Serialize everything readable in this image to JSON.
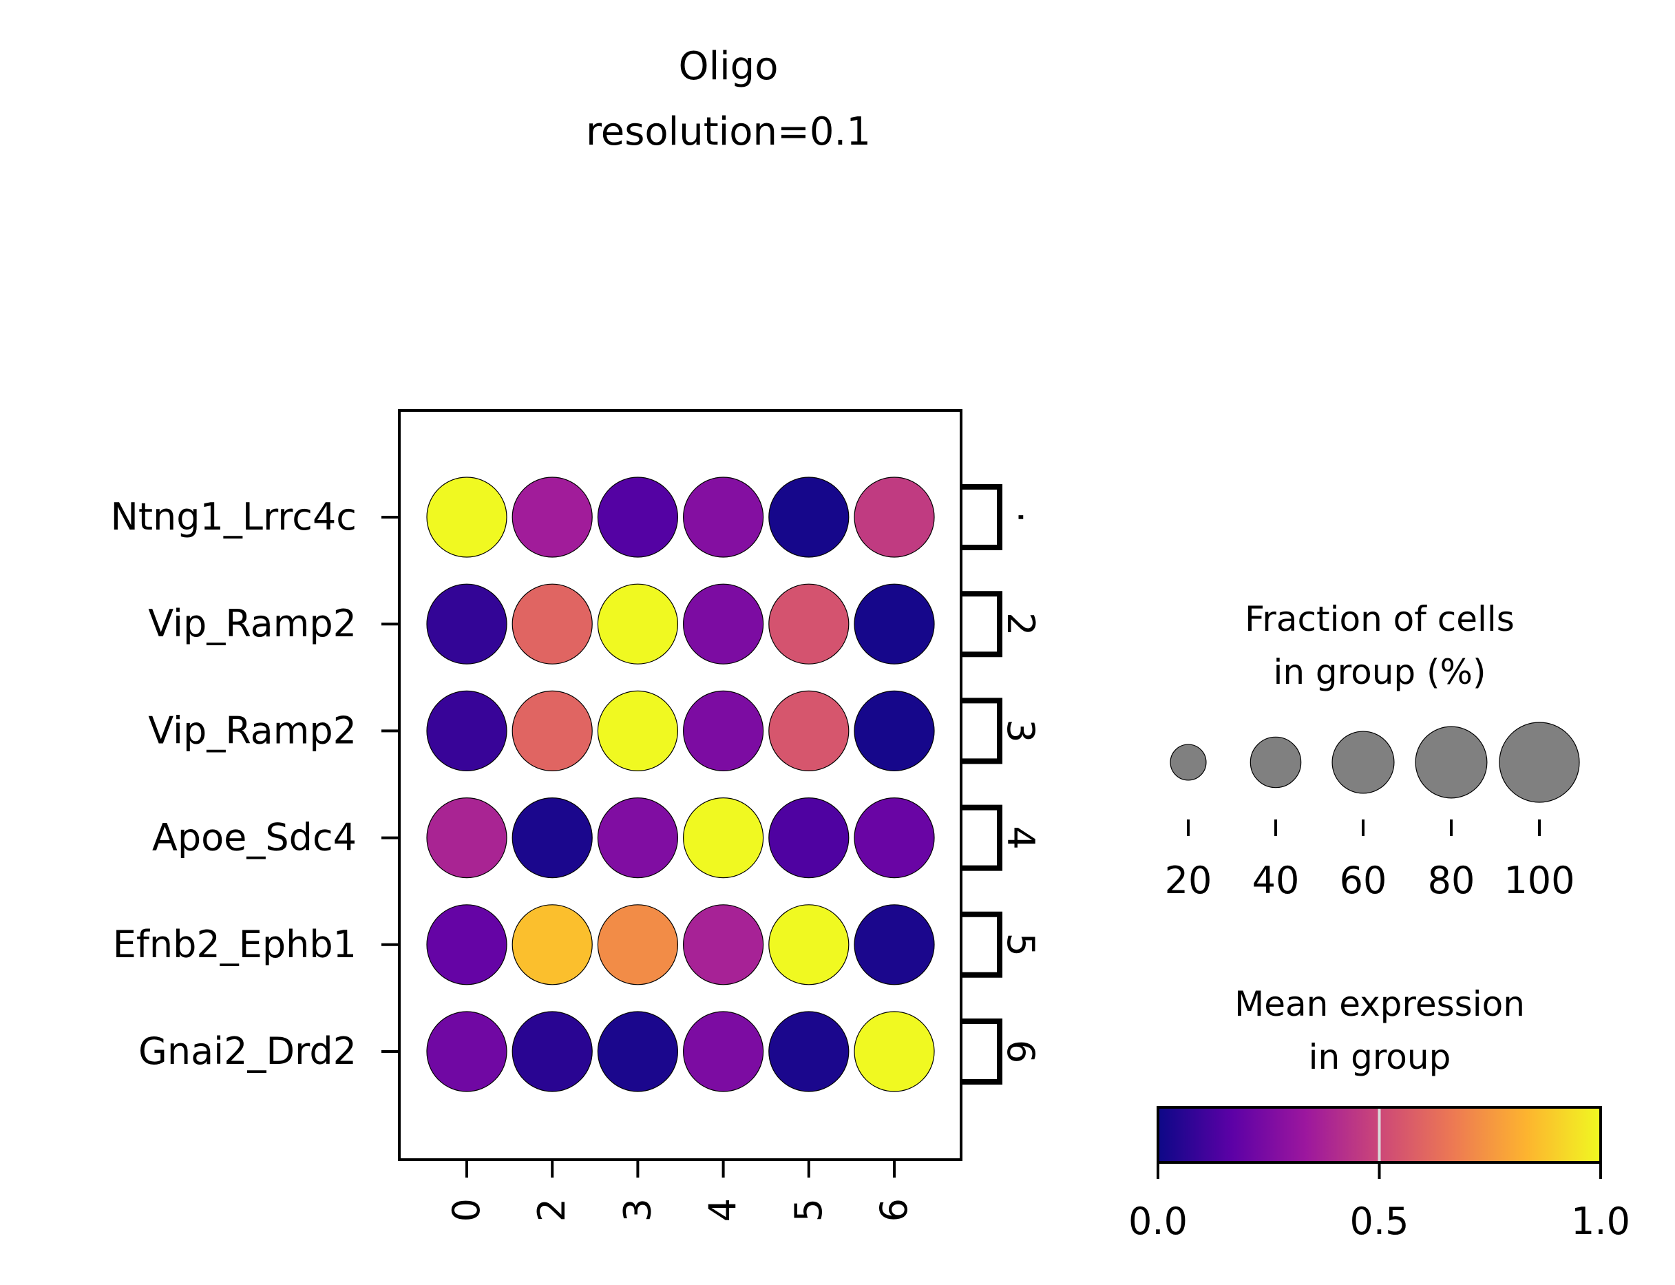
{
  "chart_data": {
    "type": "scatter",
    "title": "Oligo",
    "subtitle": "resolution=0.1",
    "x_categories": [
      "0",
      "2",
      "3",
      "4",
      "5",
      "6"
    ],
    "y_categories": [
      "Ntng1_Lrrc4c",
      "Vip_Ramp2",
      "Vip_Ramp2",
      "Apoe_Sdc4",
      "Efnb2_Ephb1",
      "Gnai2_Drd2"
    ],
    "bracket_labels": [
      "·",
      "2",
      "3",
      "4",
      "5",
      "6"
    ],
    "mean_expression": [
      [
        1.0,
        0.35,
        0.15,
        0.27,
        0.02,
        0.46
      ],
      [
        0.08,
        0.6,
        1.0,
        0.25,
        0.54,
        0.02
      ],
      [
        0.09,
        0.6,
        1.0,
        0.25,
        0.55,
        0.02
      ],
      [
        0.38,
        0.03,
        0.26,
        1.0,
        0.14,
        0.2
      ],
      [
        0.19,
        0.86,
        0.72,
        0.37,
        1.0,
        0.03
      ],
      [
        0.22,
        0.06,
        0.03,
        0.25,
        0.03,
        1.0
      ]
    ],
    "fraction_of_cells": [
      [
        100,
        100,
        100,
        100,
        100,
        100
      ],
      [
        100,
        100,
        100,
        100,
        100,
        100
      ],
      [
        100,
        100,
        100,
        100,
        100,
        100
      ],
      [
        100,
        100,
        100,
        100,
        100,
        100
      ],
      [
        100,
        100,
        100,
        100,
        100,
        100
      ],
      [
        100,
        100,
        100,
        100,
        100,
        100
      ]
    ],
    "size_legend": {
      "title_line1": "Fraction of cells",
      "title_line2": "in group (%)",
      "values": [
        20,
        40,
        60,
        80,
        100
      ],
      "labels": [
        "20",
        "40",
        "60",
        "80",
        "100"
      ],
      "color": "#808080"
    },
    "color_legend": {
      "title_line1": "Mean expression",
      "title_line2": "in group",
      "range": [
        0.0,
        1.0
      ],
      "ticks": [
        "0.0",
        "0.5",
        "1.0"
      ],
      "colormap": "plasma",
      "stops": [
        "#0d0887",
        "#5c01a6",
        "#9c179e",
        "#cc4778",
        "#ed7953",
        "#fdb42f",
        "#f0f921"
      ],
      "midline_value": 0.5
    }
  }
}
